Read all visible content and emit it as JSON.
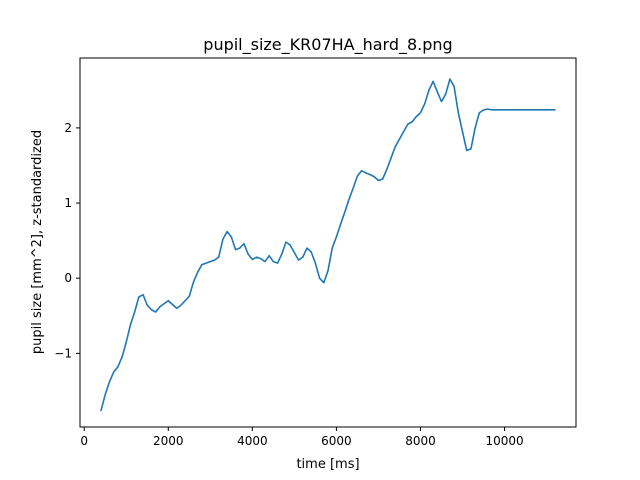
{
  "chart_data": {
    "type": "line",
    "title": "pupil_size_KR07HA_hard_8.png",
    "xlabel": "time [ms]",
    "ylabel": "pupil size [mm^2], z-standardized",
    "xlim": [
      -100,
      11700
    ],
    "ylim": [
      -1.98,
      2.93
    ],
    "x_ticks": [
      0,
      2000,
      4000,
      6000,
      8000,
      10000
    ],
    "x_tick_labels": [
      "0",
      "2000",
      "4000",
      "6000",
      "8000",
      "10000"
    ],
    "y_ticks": [
      -1,
      0,
      1,
      2
    ],
    "y_tick_labels": [
      "−1",
      "0",
      "1",
      "2"
    ],
    "grid": false,
    "legend": "none",
    "line_color": "#1f77b4",
    "series": [
      {
        "x": [
          400,
          500,
          600,
          700,
          800,
          900,
          1000,
          1100,
          1200,
          1300,
          1400,
          1500,
          1600,
          1700,
          1800,
          1900,
          2000,
          2100,
          2200,
          2300,
          2400,
          2500,
          2600,
          2700,
          2800,
          2900,
          3000,
          3100,
          3200,
          3300,
          3400,
          3500,
          3600,
          3700,
          3800,
          3900,
          4000,
          4100,
          4200,
          4300,
          4400,
          4500,
          4600,
          4700,
          4800,
          4900,
          5000,
          5100,
          5200,
          5300,
          5400,
          5500,
          5600,
          5700,
          5800,
          5900,
          6000,
          6100,
          6200,
          6300,
          6400,
          6500,
          6600,
          6700,
          6800,
          6900,
          7000,
          7100,
          7200,
          7300,
          7400,
          7500,
          7600,
          7700,
          7800,
          7900,
          8000,
          8100,
          8200,
          8300,
          8400,
          8500,
          8600,
          8700,
          8800,
          8900,
          9000,
          9100,
          9200,
          9300,
          9400,
          9500,
          9600,
          9700,
          9800,
          9900,
          10000,
          10100,
          10200,
          10300,
          10400,
          10500,
          10600,
          10700,
          10800,
          10900,
          11000,
          11100,
          11200
        ],
        "values": [
          -1.76,
          -1.55,
          -1.38,
          -1.25,
          -1.18,
          -1.05,
          -0.85,
          -0.62,
          -0.45,
          -0.25,
          -0.22,
          -0.36,
          -0.42,
          -0.45,
          -0.38,
          -0.34,
          -0.3,
          -0.35,
          -0.4,
          -0.36,
          -0.3,
          -0.24,
          -0.05,
          0.08,
          0.18,
          0.2,
          0.22,
          0.24,
          0.28,
          0.52,
          0.62,
          0.55,
          0.38,
          0.4,
          0.46,
          0.32,
          0.25,
          0.28,
          0.26,
          0.22,
          0.3,
          0.22,
          0.2,
          0.32,
          0.48,
          0.44,
          0.34,
          0.24,
          0.28,
          0.4,
          0.35,
          0.2,
          0.0,
          -0.06,
          0.1,
          0.4,
          0.55,
          0.72,
          0.88,
          1.05,
          1.2,
          1.36,
          1.43,
          1.4,
          1.38,
          1.35,
          1.3,
          1.32,
          1.45,
          1.6,
          1.75,
          1.85,
          1.95,
          2.05,
          2.08,
          2.15,
          2.2,
          2.32,
          2.5,
          2.62,
          2.48,
          2.35,
          2.45,
          2.65,
          2.55,
          2.2,
          1.95,
          1.7,
          1.72,
          2.0,
          2.2,
          2.24,
          2.25,
          2.24,
          2.24,
          2.24,
          2.24,
          2.24,
          2.24,
          2.24,
          2.24,
          2.24,
          2.24,
          2.24,
          2.24,
          2.24,
          2.24,
          2.24,
          2.24
        ]
      }
    ]
  }
}
